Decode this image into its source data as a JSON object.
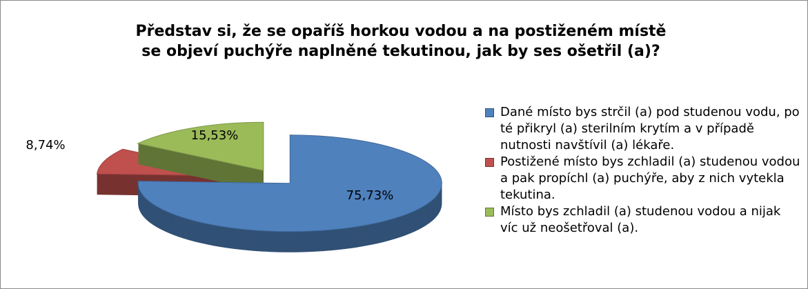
{
  "chart_data": {
    "type": "pie3d",
    "title": "Představ si, že se opaříš horkou vodou a na postiženém místě se objeví puchýře naplněné tekutinou, jak by ses ošetřil (a)?",
    "categories": [
      "Dané místo bys strčil (a) pod studenou vodu, po té přikryl (a) sterilním krytím a v případě nutnosti navštívil (a) lékaře.",
      "Postižené místo bys zchladil (a) studenou vodou a pak propíchl (a) puchýře, aby z nich vytekla tekutina.",
      "Místo bys zchladil (a) studenou vodou a nijak víc už neošetřoval (a)."
    ],
    "values": [
      75.73,
      8.74,
      15.53
    ],
    "value_labels": [
      "75,73%",
      "8,74%",
      "15,53%"
    ],
    "colors": [
      "#4f81bd",
      "#c0504d",
      "#9bbb59"
    ],
    "legend": "right"
  }
}
